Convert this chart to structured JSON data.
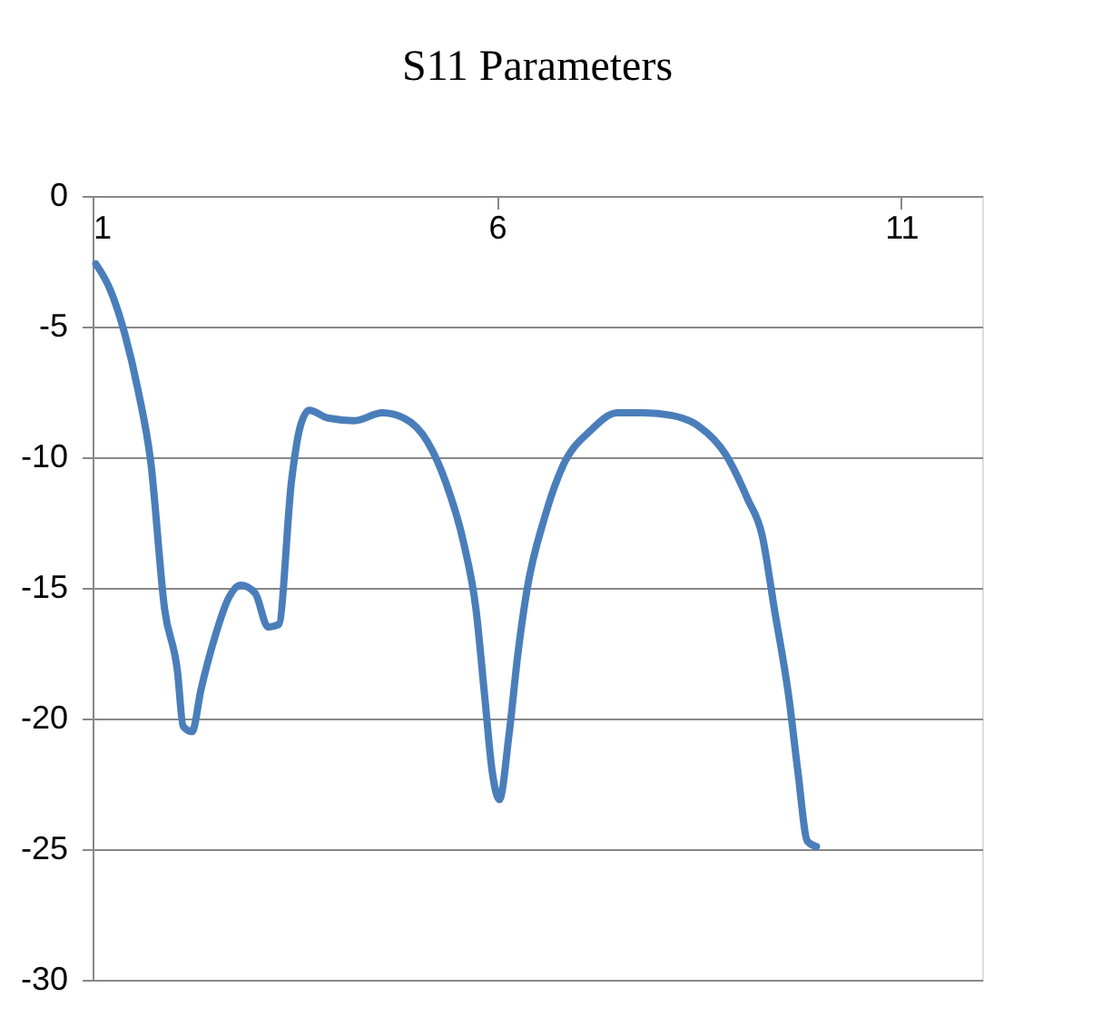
{
  "chart_data": {
    "type": "line",
    "title": "S11 Parameters",
    "x": [
      1.04,
      1.22,
      1.4,
      1.56,
      1.72,
      1.89,
      2.05,
      2.12,
      2.23,
      2.34,
      2.52,
      2.68,
      2.83,
      3.01,
      3.17,
      3.3,
      3.46,
      3.57,
      3.68,
      3.91,
      4.24,
      4.58,
      4.85,
      5.14,
      5.36,
      5.59,
      5.74,
      5.85,
      5.94,
      6.03,
      6.15,
      6.26,
      6.37,
      6.59,
      6.82,
      7.15,
      7.49,
      7.82,
      8.16,
      8.49,
      8.83,
      9.1,
      9.28,
      9.43,
      9.61,
      9.72,
      9.84,
      9.95
    ],
    "series": [
      {
        "color": "#4a7ebb",
        "values": [
          -2.6,
          -3.6,
          -5.3,
          -7.4,
          -10.2,
          -15.8,
          -18.2,
          -20.3,
          -20.5,
          -18.9,
          -16.8,
          -15.4,
          -14.9,
          -15.2,
          -16.5,
          -16.4,
          -10.9,
          -8.8,
          -8.2,
          -8.5,
          -8.6,
          -8.3,
          -8.5,
          -9.4,
          -10.9,
          -13.3,
          -15.8,
          -19.2,
          -22.0,
          -23.1,
          -20.6,
          -17.5,
          -15.1,
          -12.3,
          -10.3,
          -9.0,
          -8.3,
          -8.3,
          -8.4,
          -8.8,
          -9.9,
          -11.6,
          -13.0,
          -15.8,
          -19.2,
          -22.0,
          -24.7,
          -24.9
        ]
      }
    ],
    "xlim": [
      1,
      12
    ],
    "xticks": [
      1,
      6,
      11
    ],
    "ylim": [
      -30,
      0
    ],
    "yticks": [
      0,
      -5,
      -10,
      -15,
      -20,
      -25,
      -30
    ],
    "grid": "y",
    "marker": "none",
    "line_style": "solid"
  }
}
